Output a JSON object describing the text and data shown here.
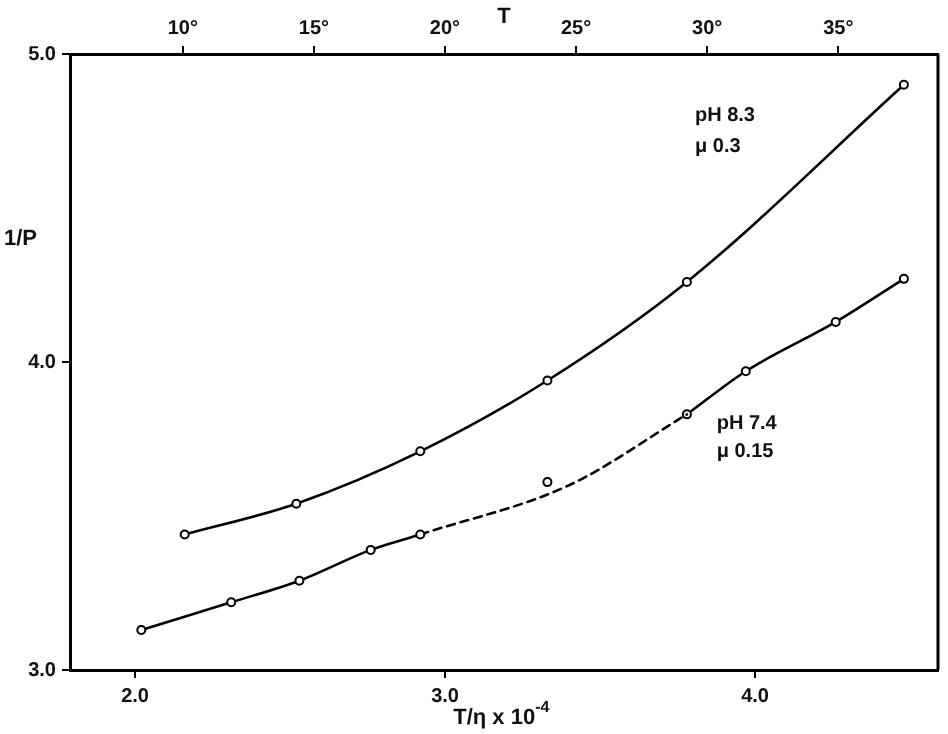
{
  "chart_data": {
    "type": "line",
    "xlabel": "T/η x 10$^{-4}$",
    "ylabel": "1/P",
    "x2label": "T",
    "xlim": [
      1.79,
      4.59
    ],
    "xticks": [
      {
        "value": 2,
        "label": "2.0"
      },
      {
        "value": 3,
        "label": "3.0"
      },
      {
        "value": 4,
        "label": "4.0"
      }
    ],
    "x2lim": [
      5.7,
      38.8
    ],
    "x2ticks": [
      {
        "value": 10,
        "label": "10°"
      },
      {
        "value": 15,
        "label": "15°"
      },
      {
        "value": 20,
        "label": "20°"
      },
      {
        "value": 25,
        "label": "25°"
      },
      {
        "value": 30,
        "label": "30°"
      },
      {
        "value": 35,
        "label": "35°"
      }
    ],
    "ylim": [
      3,
      5
    ],
    "yticks": [
      {
        "value": 3,
        "label": "3.0"
      },
      {
        "value": 4,
        "label": "4.0"
      },
      {
        "value": 5,
        "label": "5.0"
      }
    ],
    "grid": false,
    "legend": false,
    "marker": "circle",
    "line_style": "solid",
    "series": [
      {
        "type": "line",
        "color": "#000000",
        "x": [
          2.16,
          2.52,
          2.92,
          3.33,
          3.78,
          4.48
        ],
        "values": [
          3.44,
          3.54,
          3.71,
          3.94,
          4.26,
          4.9
        ]
      },
      {
        "type": "line",
        "color": "#000000",
        "x": [
          2.02,
          2.31,
          2.53,
          2.76,
          2.92
        ],
        "values": [
          3.13,
          3.22,
          3.29,
          3.39,
          3.44
        ]
      },
      {
        "type": "line",
        "color": "#000000",
        "marker": "none",
        "line_style": "dashed",
        "x": [
          2.92,
          3.4,
          3.78
        ],
        "values": [
          3.44,
          3.6,
          3.83
        ]
      },
      {
        "type": "scatter",
        "color": "#000000",
        "x": [
          3.33
        ],
        "values": [
          3.61
        ]
      },
      {
        "type": "line",
        "color": "#000000",
        "x": [
          3.78,
          3.97,
          4.26,
          4.48
        ],
        "values": [
          3.83,
          3.97,
          4.13,
          4.27
        ]
      }
    ],
    "annotations": [
      "pH 8.3",
      "μ 0.3",
      "pH 7.4",
      "μ 0.15"
    ]
  }
}
